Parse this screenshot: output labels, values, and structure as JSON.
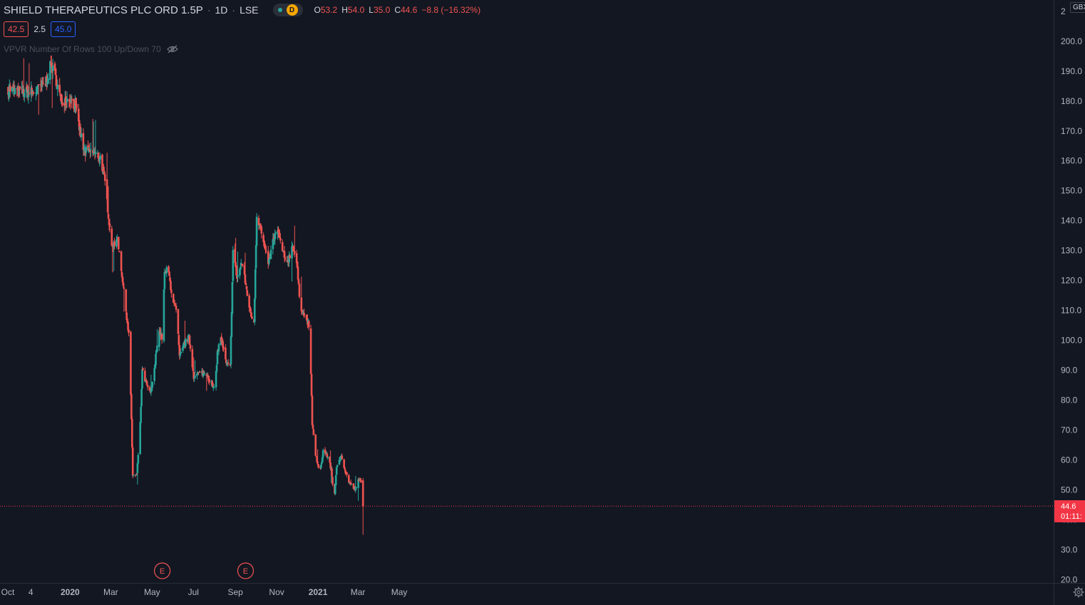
{
  "legend": {
    "title": "SHIELD THERAPEUTICS PLC ORD 1.5P",
    "interval": "1D",
    "exchange": "LSE",
    "status_badge": "D",
    "open_label": "O",
    "open": "53.2",
    "high_label": "H",
    "high": "54.0",
    "low_label": "L",
    "low": "35.0",
    "close_label": "C",
    "close": "44.6",
    "change": "−8.8 (−16.32%)"
  },
  "indicator_row": {
    "bid": "42.5",
    "spread": "2.5",
    "ask": "45.0"
  },
  "vpvr": {
    "label": "VPVR Number Of Rows 100 Up/Down 70"
  },
  "price_axis": {
    "currency": "GBX",
    "last_price": "44.6",
    "countdown": "01:11:",
    "ticks": [
      "20.0",
      "30.0",
      "40.0",
      "50.0",
      "60.0",
      "70.0",
      "80.0",
      "90.0",
      "100.0",
      "110.0",
      "120.0",
      "130.0",
      "140.0",
      "150.0",
      "160.0",
      "170.0",
      "180.0",
      "190.0",
      "200.0",
      "2"
    ]
  },
  "time_axis": {
    "ticks": [
      "Oct",
      "4",
      "2020",
      "Mar",
      "May",
      "Jul",
      "Sep",
      "Nov",
      "2021",
      "Mar",
      "May"
    ]
  },
  "events": [
    {
      "label": "E",
      "date": "2020-05-15"
    },
    {
      "label": "E",
      "date": "2020-09-15"
    }
  ],
  "colors": {
    "up": "#26a69a",
    "down": "#ef5350",
    "background": "#131722",
    "last_price_line": "#f23645"
  },
  "chart_data": {
    "type": "candlestick",
    "interval": "1D",
    "ylim": [
      20,
      210
    ],
    "x_range": [
      "2019-09-30",
      "2021-05-25"
    ],
    "last_price": 44.6,
    "ohlc_last": {
      "open": 53.2,
      "high": 54.0,
      "low": 35.0,
      "close": 44.6
    },
    "close_path": [
      [
        "2019-10-01",
        184
      ],
      [
        "2019-10-20",
        183
      ],
      [
        "2019-11-10",
        183
      ],
      [
        "2019-11-25",
        186
      ],
      [
        "2019-12-03",
        192
      ],
      [
        "2019-12-10",
        188
      ],
      [
        "2019-12-18",
        180
      ],
      [
        "2020-01-01",
        181
      ],
      [
        "2020-01-08",
        178
      ],
      [
        "2020-01-15",
        170
      ],
      [
        "2020-01-21",
        163
      ],
      [
        "2020-02-01",
        163
      ],
      [
        "2020-02-15",
        161
      ],
      [
        "2020-02-22",
        151
      ],
      [
        "2020-03-01",
        133
      ],
      [
        "2020-03-06",
        131
      ],
      [
        "2020-03-10",
        135
      ],
      [
        "2020-03-15",
        126
      ],
      [
        "2020-03-22",
        112
      ],
      [
        "2020-03-28",
        100
      ],
      [
        "2020-04-02",
        55
      ],
      [
        "2020-04-08",
        55
      ],
      [
        "2020-04-13",
        72
      ],
      [
        "2020-04-16",
        90
      ],
      [
        "2020-04-21",
        86
      ],
      [
        "2020-04-28",
        82
      ],
      [
        "2020-05-04",
        90
      ],
      [
        "2020-05-10",
        104
      ],
      [
        "2020-05-15",
        101
      ],
      [
        "2020-05-19",
        122
      ],
      [
        "2020-05-24",
        124
      ],
      [
        "2020-05-30",
        115
      ],
      [
        "2020-06-06",
        109
      ],
      [
        "2020-06-10",
        94
      ],
      [
        "2020-06-17",
        99
      ],
      [
        "2020-06-24",
        101
      ],
      [
        "2020-07-01",
        88
      ],
      [
        "2020-07-10",
        89
      ],
      [
        "2020-07-20",
        89
      ],
      [
        "2020-07-26",
        86
      ],
      [
        "2020-08-01",
        83
      ],
      [
        "2020-08-05",
        96
      ],
      [
        "2020-08-10",
        101
      ],
      [
        "2020-08-18",
        92
      ],
      [
        "2020-08-24",
        91
      ],
      [
        "2020-08-28",
        130
      ],
      [
        "2020-09-03",
        121
      ],
      [
        "2020-09-10",
        126
      ],
      [
        "2020-09-17",
        117
      ],
      [
        "2020-09-22",
        110
      ],
      [
        "2020-09-28",
        106
      ],
      [
        "2020-10-02",
        142
      ],
      [
        "2020-10-07",
        138
      ],
      [
        "2020-10-14",
        130
      ],
      [
        "2020-10-20",
        126
      ],
      [
        "2020-10-26",
        133
      ],
      [
        "2020-11-01",
        137
      ],
      [
        "2020-11-05",
        134
      ],
      [
        "2020-11-12",
        127
      ],
      [
        "2020-11-18",
        127
      ],
      [
        "2020-11-24",
        132
      ],
      [
        "2020-11-30",
        126
      ],
      [
        "2020-12-05",
        112
      ],
      [
        "2020-12-12",
        108
      ],
      [
        "2020-12-17",
        106
      ],
      [
        "2020-12-20",
        98
      ],
      [
        "2020-12-23",
        72
      ],
      [
        "2020-12-28",
        62
      ],
      [
        "2021-01-03",
        55
      ],
      [
        "2021-01-08",
        63
      ],
      [
        "2021-01-13",
        62
      ],
      [
        "2021-01-20",
        57
      ],
      [
        "2021-01-24",
        47
      ],
      [
        "2021-01-28",
        57
      ],
      [
        "2021-02-04",
        62
      ],
      [
        "2021-02-10",
        56
      ],
      [
        "2021-02-15",
        53
      ],
      [
        "2021-02-20",
        51
      ],
      [
        "2021-02-25",
        50
      ],
      [
        "2021-03-01",
        53
      ],
      [
        "2021-03-05",
        53.2
      ],
      [
        "2021-03-08",
        44.6
      ]
    ]
  }
}
